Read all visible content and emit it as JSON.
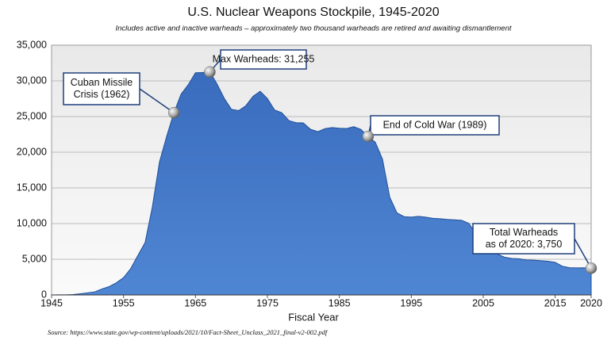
{
  "chart_data": {
    "type": "area",
    "title": "U.S. Nuclear Weapons Stockpile, 1945-2020",
    "subtitle": "Includes active and inactive warheads – approximately two thousand warheads are retired and awaiting dismantlement",
    "x_label": "Fiscal Year",
    "source": "Source: https://www.state.gov/wp-content/uploads/2021/10/Fact-Sheet_Unclass_2021_final-v2-002.pdf",
    "x": [
      1945,
      1946,
      1947,
      1948,
      1949,
      1950,
      1951,
      1952,
      1953,
      1954,
      1955,
      1956,
      1957,
      1958,
      1959,
      1960,
      1961,
      1962,
      1963,
      1964,
      1965,
      1966,
      1967,
      1968,
      1969,
      1970,
      1971,
      1972,
      1973,
      1974,
      1975,
      1976,
      1977,
      1978,
      1979,
      1980,
      1981,
      1982,
      1983,
      1984,
      1985,
      1986,
      1987,
      1988,
      1989,
      1990,
      1991,
      1992,
      1993,
      1994,
      1995,
      1996,
      1997,
      1998,
      1999,
      2000,
      2001,
      2002,
      2003,
      2004,
      2005,
      2006,
      2007,
      2008,
      2009,
      2010,
      2011,
      2012,
      2013,
      2014,
      2015,
      2016,
      2017,
      2018,
      2019,
      2020
    ],
    "series": [
      {
        "color": "#3f72c2",
        "values": [
          2,
          9,
          13,
          50,
          170,
          299,
          438,
          841,
          1169,
          1703,
          2422,
          3692,
          5543,
          7345,
          12298,
          18638,
          22229,
          25540,
          28133,
          29463,
          31139,
          31175,
          31255,
          29561,
          27552,
          26008,
          25830,
          26516,
          27835,
          28537,
          27519,
          25914,
          25542,
          24418,
          24138,
          24104,
          23208,
          22886,
          23305,
          23459,
          23368,
          23317,
          23575,
          23205,
          22217,
          21392,
          19008,
          13708,
          11511,
          10979,
          10904,
          11011,
          10903,
          10732,
          10685,
          10577,
          10526,
          10457,
          10027,
          8570,
          8360,
          7853,
          5709,
          5273,
          5113,
          5066,
          4897,
          4881,
          4804,
          4717,
          4571,
          4018,
          3822,
          3785,
          3805,
          3750
        ]
      }
    ],
    "xlim": [
      1945,
      2020
    ],
    "xticks": [
      1945,
      1955,
      1965,
      1975,
      1985,
      1995,
      2005,
      2015,
      2020
    ],
    "ylim": [
      0,
      35000
    ],
    "yticks": [
      0,
      {
        "value": 5000,
        "label": "5,000"
      },
      {
        "value": 10000,
        "label": "10,000"
      },
      {
        "value": 15000,
        "label": "15,000"
      },
      {
        "value": 20000,
        "label": "20,000"
      },
      {
        "value": 25000,
        "label": "25,000"
      },
      {
        "value": 30000,
        "label": "30,000"
      },
      {
        "value": 35000,
        "label": "35,000"
      }
    ],
    "grid": true,
    "annotations": [
      {
        "lines": [
          "Cuban Missile",
          "Crisis (1962)"
        ],
        "x": 1962
      },
      {
        "lines": [
          "Max Warheads: 31,255"
        ],
        "x": 1967
      },
      {
        "lines": [
          "End of Cold War (1989)"
        ],
        "x": 1989
      },
      {
        "lines": [
          "Total Warheads",
          "as of 2020: 3,750"
        ],
        "x": 2020
      }
    ]
  }
}
